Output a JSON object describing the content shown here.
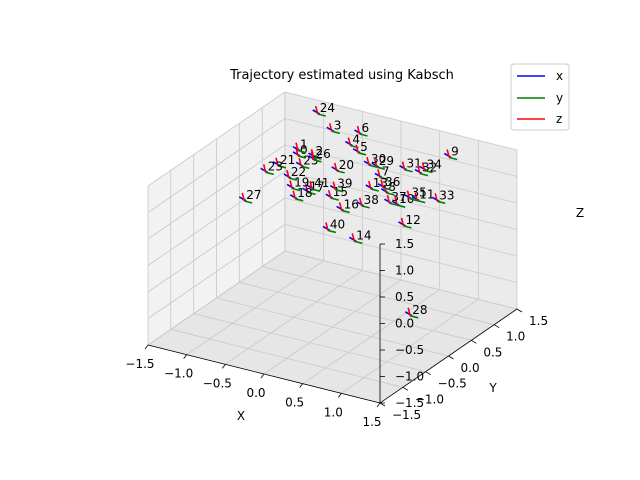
{
  "chart_data": {
    "type": "scatter",
    "title": "Trajectory estimated using Kabsch",
    "xlabel": "X",
    "ylabel": "Y",
    "zlabel": "Z",
    "xlim": [
      -1.5,
      1.5
    ],
    "ylim": [
      -1.5,
      1.5
    ],
    "zlim": [
      -1.5,
      1.5
    ],
    "x_ticks": [
      "−1.5",
      "−1.0",
      "−0.5",
      "0.0",
      "0.5",
      "1.0",
      "1.5"
    ],
    "y_ticks": [
      "−1.5",
      "−1.0",
      "−0.5",
      "0.0",
      "0.5",
      "1.0",
      "1.5"
    ],
    "z_ticks": [
      "−1.5",
      "−1.0",
      "−0.5",
      "0.0",
      "0.5",
      "1.0",
      "1.5"
    ],
    "grid": true,
    "legend_position": "top-right",
    "legend": [
      {
        "label": "x",
        "color": "#0000ff"
      },
      {
        "label": "y",
        "color": "#008000"
      },
      {
        "label": "z",
        "color": "#ff0000"
      }
    ],
    "points": [
      {
        "label": "0",
        "x": -0.8,
        "y": 0.6,
        "z": 1.1
      },
      {
        "label": "1",
        "x": -0.8,
        "y": 0.6,
        "z": 1.2
      },
      {
        "label": "2",
        "x": -0.6,
        "y": 0.6,
        "z": 1.15
      },
      {
        "label": "3",
        "x": -0.6,
        "y": 1.0,
        "z": 1.4
      },
      {
        "label": "4",
        "x": -0.3,
        "y": 0.9,
        "z": 1.3
      },
      {
        "label": "5",
        "x": -0.2,
        "y": 0.9,
        "z": 1.2
      },
      {
        "label": "6",
        "x": -0.3,
        "y": 1.1,
        "z": 1.4
      },
      {
        "label": "7",
        "x": 0.2,
        "y": 0.7,
        "z": 1.0
      },
      {
        "label": "8",
        "x": 0.4,
        "y": 0.5,
        "z": 0.9
      },
      {
        "label": "9",
        "x": 0.8,
        "y": 1.2,
        "z": 1.3
      },
      {
        "label": "10",
        "x": 0.6,
        "y": 0.4,
        "z": 0.8
      },
      {
        "label": "11",
        "x": 0.8,
        "y": 0.5,
        "z": 0.9
      },
      {
        "label": "12",
        "x": 0.8,
        "y": 0.2,
        "z": 0.6
      },
      {
        "label": "13",
        "x": 0.2,
        "y": 0.5,
        "z": 0.9
      },
      {
        "label": "14",
        "x": 0.4,
        "y": -0.2,
        "z": 0.4
      },
      {
        "label": "15",
        "x": -0.2,
        "y": 0.3,
        "z": 0.7
      },
      {
        "label": "16",
        "x": 0.0,
        "y": 0.2,
        "z": 0.6
      },
      {
        "label": "17",
        "x": -0.5,
        "y": 0.3,
        "z": 0.7
      },
      {
        "label": "18",
        "x": -0.6,
        "y": 0.2,
        "z": 0.6
      },
      {
        "label": "19",
        "x": -0.7,
        "y": 0.3,
        "z": 0.7
      },
      {
        "label": "20",
        "x": -0.3,
        "y": 0.6,
        "z": 1.0
      },
      {
        "label": "21",
        "x": -1.0,
        "y": 0.5,
        "z": 0.9
      },
      {
        "label": "22",
        "x": -0.8,
        "y": 0.4,
        "z": 0.8
      },
      {
        "label": "23",
        "x": -1.1,
        "y": 0.4,
        "z": 0.8
      },
      {
        "label": "24",
        "x": -0.9,
        "y": 1.2,
        "z": 1.5
      },
      {
        "label": "25",
        "x": -0.7,
        "y": 0.5,
        "z": 1.0
      },
      {
        "label": "26",
        "x": -0.6,
        "y": 0.6,
        "z": 1.1
      },
      {
        "label": "27",
        "x": -1.2,
        "y": 0.1,
        "z": 0.4
      },
      {
        "label": "28",
        "x": 1.3,
        "y": -0.5,
        "z": -0.5
      },
      {
        "label": "29",
        "x": 0.1,
        "y": 0.8,
        "z": 1.1
      },
      {
        "label": "30",
        "x": 0.0,
        "y": 0.8,
        "z": 1.1
      },
      {
        "label": "31",
        "x": 0.4,
        "y": 0.9,
        "z": 1.1
      },
      {
        "label": "32",
        "x": 0.6,
        "y": 0.9,
        "z": 1.1
      },
      {
        "label": "33",
        "x": 1.0,
        "y": 0.6,
        "z": 0.9
      },
      {
        "label": "34",
        "x": 0.6,
        "y": 1.0,
        "z": 1.1
      },
      {
        "label": "35",
        "x": 0.7,
        "y": 0.5,
        "z": 0.9
      },
      {
        "label": "36",
        "x": 0.3,
        "y": 0.6,
        "z": 0.9
      },
      {
        "label": "37",
        "x": 0.5,
        "y": 0.4,
        "z": 0.8
      },
      {
        "label": "38",
        "x": 0.2,
        "y": 0.3,
        "z": 0.7
      },
      {
        "label": "39",
        "x": -0.2,
        "y": 0.4,
        "z": 0.8
      },
      {
        "label": "40",
        "x": 0.0,
        "y": -0.1,
        "z": 0.4
      },
      {
        "label": "41",
        "x": -0.5,
        "y": 0.4,
        "z": 0.7
      }
    ]
  }
}
